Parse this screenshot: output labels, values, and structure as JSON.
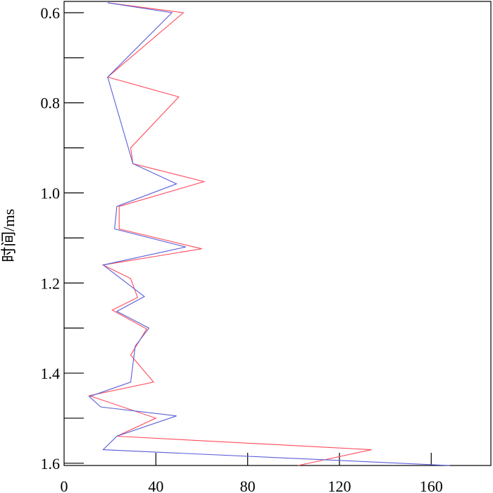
{
  "chart_data": {
    "type": "line",
    "title": "",
    "xlabel": "",
    "ylabel": "时间/ms",
    "xlim": [
      0,
      186
    ],
    "ylim": [
      0.575,
      1.605
    ],
    "y_inverted": true,
    "grid": false,
    "x_ticks": [
      0,
      40,
      80,
      120,
      160
    ],
    "x_tick_labels": [
      "0",
      "40",
      "80",
      "120",
      "160"
    ],
    "y_major_ticks": [
      0.6,
      0.8,
      1.0,
      1.2,
      1.4,
      1.6
    ],
    "y_tick_labels": [
      "0.6",
      "0.8",
      "1.0",
      "1.2",
      "1.4",
      "1.6"
    ],
    "y_minor_ticks": [
      0.7,
      0.9,
      1.1,
      1.3,
      1.5
    ],
    "series": [
      {
        "color": "#ff4b5c",
        "points": [
          [
            19,
            0.578
          ],
          [
            52,
            0.6
          ],
          [
            19,
            0.743
          ],
          [
            50,
            0.787
          ],
          [
            29,
            0.9
          ],
          [
            30,
            0.935
          ],
          [
            61,
            0.975
          ],
          [
            24,
            1.03
          ],
          [
            24,
            1.08
          ],
          [
            60,
            1.124
          ],
          [
            17,
            1.16
          ],
          [
            29,
            1.19
          ],
          [
            32,
            1.232
          ],
          [
            21,
            1.26
          ],
          [
            36,
            1.302
          ],
          [
            29,
            1.36
          ],
          [
            39,
            1.42
          ],
          [
            11,
            1.45
          ],
          [
            40,
            1.5
          ],
          [
            23,
            1.54
          ],
          [
            134,
            1.57
          ],
          [
            102,
            1.605
          ]
        ]
      },
      {
        "color": "#5b5fd6",
        "points": [
          [
            19,
            0.578
          ],
          [
            47,
            0.6
          ],
          [
            19,
            0.743
          ],
          [
            30,
            0.935
          ],
          [
            49,
            0.98
          ],
          [
            23,
            1.03
          ],
          [
            22,
            1.08
          ],
          [
            53,
            1.12
          ],
          [
            17,
            1.16
          ],
          [
            35,
            1.23
          ],
          [
            23,
            1.263
          ],
          [
            37,
            1.3
          ],
          [
            31,
            1.34
          ],
          [
            29,
            1.42
          ],
          [
            11,
            1.452
          ],
          [
            16,
            1.475
          ],
          [
            49,
            1.495
          ],
          [
            23,
            1.54
          ],
          [
            17,
            1.57
          ],
          [
            168,
            1.605
          ]
        ]
      }
    ]
  }
}
